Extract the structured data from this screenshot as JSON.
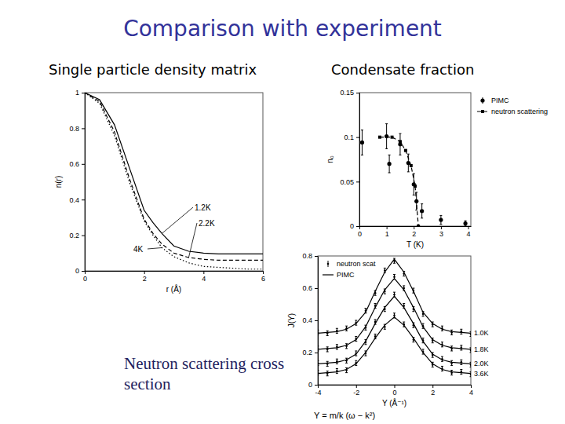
{
  "title": "Comparison with experiment",
  "chart_data": [
    {
      "type": "line",
      "title": "Single particle density matrix",
      "x_label": "r (Å)",
      "y_label": "n(r)",
      "xlim": [
        0,
        6
      ],
      "xticks": [
        0,
        2,
        4,
        6
      ],
      "ylim": [
        0,
        1
      ],
      "yticks": [
        0,
        0.2,
        0.4,
        0.6,
        0.8,
        1
      ],
      "x": [
        0,
        0.5,
        1,
        1.5,
        2,
        2.3,
        2.6,
        3,
        3.5,
        4,
        4.5,
        5,
        5.5,
        6
      ],
      "series": [
        {
          "name": "1.2K",
          "line_style": "solid",
          "color": "#000000",
          "values": [
            1.0,
            0.96,
            0.82,
            0.58,
            0.34,
            0.27,
            0.21,
            0.14,
            0.11,
            0.1,
            0.095,
            0.095,
            0.095,
            0.095
          ]
        },
        {
          "name": "2.2K",
          "line_style": "dashed",
          "color": "#000000",
          "values": [
            1.0,
            0.95,
            0.78,
            0.52,
            0.29,
            0.21,
            0.15,
            0.1,
            0.075,
            0.065,
            0.06,
            0.06,
            0.06,
            0.06
          ]
        },
        {
          "name": "4K",
          "line_style": "dotted",
          "color": "#000000",
          "values": [
            1.0,
            0.94,
            0.76,
            0.5,
            0.28,
            0.2,
            0.13,
            0.08,
            0.045,
            0.025,
            0.02,
            0.015,
            0.01,
            0.01
          ]
        }
      ]
    },
    {
      "type": "scatter",
      "title": "Condensate fraction",
      "x_label": "T (K)",
      "y_label": "n₀",
      "xlim": [
        0,
        4.1
      ],
      "xticks": [
        0,
        1,
        2,
        3,
        4
      ],
      "ylim": [
        0,
        0.15
      ],
      "yticks": [
        0,
        0.05,
        0.1,
        0.15
      ],
      "legend": "right",
      "series": [
        {
          "name": "PIMC",
          "type": "scatter",
          "marker": "circle",
          "color": "#000000",
          "x": [
            0.1,
            1.0,
            1.1,
            1.5,
            1.8,
            2.0,
            2.1,
            2.3,
            3.0,
            3.9
          ],
          "values": [
            0.094,
            0.101,
            0.07,
            0.092,
            0.071,
            0.047,
            0.028,
            0.017,
            0.007,
            0.003
          ],
          "errors": [
            0.014,
            0.014,
            0.01,
            0.012,
            0.01,
            0.012,
            0.01,
            0.008,
            0.005,
            0.003
          ]
        },
        {
          "name": "neutron scattering",
          "type": "line",
          "line_style": "dashed",
          "marker": "square",
          "color": "#000000",
          "x": [
            0.75,
            1.2,
            1.5,
            1.7,
            1.9,
            2.05,
            2.17
          ],
          "values": [
            0.1,
            0.1,
            0.095,
            0.085,
            0.068,
            0.045,
            0.0
          ]
        }
      ]
    },
    {
      "type": "line",
      "title": "Neutron scattering cross section",
      "x_label": "Y (Å⁻¹)",
      "y_label": "J(Y)",
      "annotation": "Y = m/k (ω − k²)",
      "xlim": [
        -4,
        4
      ],
      "xticks": [
        -4,
        -2,
        0,
        2,
        4
      ],
      "ylim": [
        0,
        0.8
      ],
      "yticks": [
        0,
        0.2,
        0.4,
        0.6,
        0.8
      ],
      "legend": "upper left",
      "x": [
        -4,
        -3.5,
        -3,
        -2.5,
        -2,
        -1.5,
        -1,
        -0.5,
        0,
        0.5,
        1,
        1.5,
        2,
        2.5,
        3,
        3.5,
        4
      ],
      "curve_labels": [
        "1.0K",
        "1.8K",
        "2.0K",
        "3.6K"
      ],
      "series": [
        {
          "name": "neutron scat",
          "type": "scatter",
          "marker": "dot",
          "color": "#000000",
          "values": [
            [
              0.325,
              0.32,
              0.335,
              0.35,
              0.385,
              0.46,
              0.57,
              0.71,
              0.77,
              0.69,
              0.585,
              0.44,
              0.375,
              0.35,
              0.325,
              0.33,
              0.315
            ],
            [
              0.225,
              0.22,
              0.235,
              0.24,
              0.285,
              0.355,
              0.49,
              0.58,
              0.67,
              0.6,
              0.47,
              0.365,
              0.275,
              0.25,
              0.225,
              0.23,
              0.215
            ],
            [
              0.135,
              0.13,
              0.145,
              0.15,
              0.195,
              0.265,
              0.39,
              0.47,
              0.56,
              0.49,
              0.37,
              0.275,
              0.185,
              0.16,
              0.135,
              0.14,
              0.125
            ],
            [
              0.075,
              0.07,
              0.085,
              0.09,
              0.135,
              0.195,
              0.3,
              0.36,
              0.43,
              0.375,
              0.28,
              0.205,
              0.125,
              0.1,
              0.075,
              0.08,
              0.065
            ]
          ],
          "errors": [
            0.015,
            0.015,
            0.015,
            0.015
          ]
        },
        {
          "name": "PIMC",
          "type": "line",
          "line_style": "solid",
          "color": "#000000",
          "values": [
            [
              0.32,
              0.325,
              0.33,
              0.345,
              0.38,
              0.45,
              0.58,
              0.7,
              0.78,
              0.7,
              0.58,
              0.45,
              0.38,
              0.345,
              0.33,
              0.325,
              0.32
            ],
            [
              0.22,
              0.225,
              0.23,
              0.245,
              0.28,
              0.36,
              0.48,
              0.59,
              0.66,
              0.59,
              0.48,
              0.36,
              0.28,
              0.245,
              0.23,
              0.225,
              0.22
            ],
            [
              0.13,
              0.135,
              0.14,
              0.155,
              0.19,
              0.27,
              0.38,
              0.48,
              0.55,
              0.48,
              0.38,
              0.27,
              0.19,
              0.155,
              0.14,
              0.135,
              0.13
            ],
            [
              0.07,
              0.075,
              0.08,
              0.095,
              0.13,
              0.2,
              0.29,
              0.37,
              0.42,
              0.37,
              0.29,
              0.2,
              0.13,
              0.095,
              0.08,
              0.075,
              0.07
            ]
          ]
        }
      ]
    }
  ]
}
